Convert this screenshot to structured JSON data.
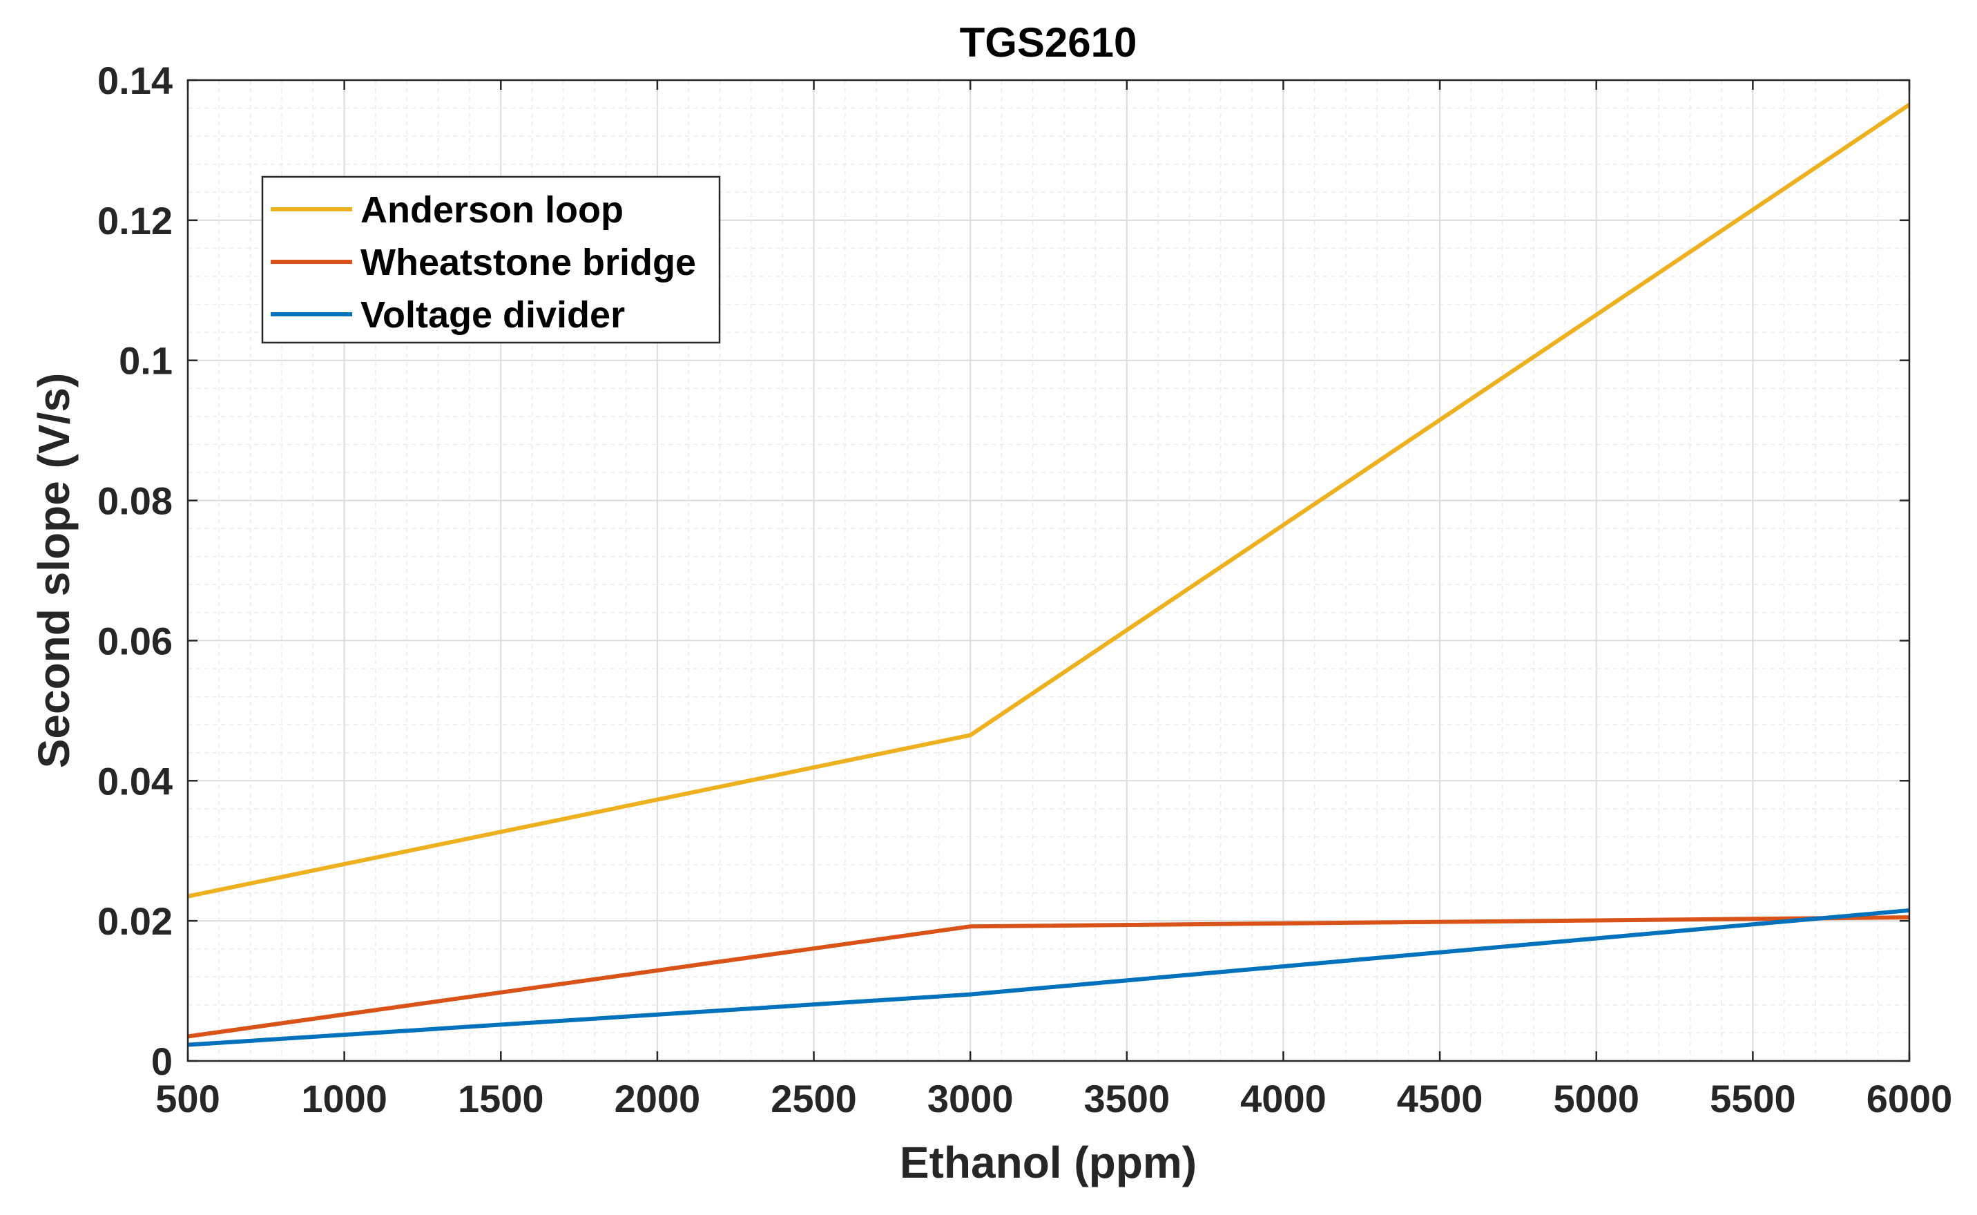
{
  "chart_data": {
    "type": "line",
    "title": "TGS2610",
    "xlabel": "Ethanol (ppm)",
    "ylabel": "Second slope (V/s)",
    "xlim": [
      500,
      6000
    ],
    "ylim": [
      0,
      0.14
    ],
    "xticks": [
      500,
      1000,
      1500,
      2000,
      2500,
      3000,
      3500,
      4000,
      4500,
      5000,
      5500,
      6000
    ],
    "xtick_labels": [
      "500",
      "1000",
      "1500",
      "2000",
      "2500",
      "3000",
      "3500",
      "4000",
      "4500",
      "5000",
      "5500",
      "6000"
    ],
    "yticks": [
      0,
      0.02,
      0.04,
      0.06,
      0.08,
      0.1,
      0.12,
      0.14
    ],
    "ytick_labels": [
      "0",
      "0.02",
      "0.04",
      "0.06",
      "0.08",
      "0.1",
      "0.12",
      "0.14"
    ],
    "grid": true,
    "minor_grid": true,
    "legend_position": "top-left",
    "series": [
      {
        "name": "Anderson loop",
        "color": "#EDB120",
        "x": [
          500,
          3000,
          6000
        ],
        "y": [
          0.0235,
          0.0465,
          0.1365
        ]
      },
      {
        "name": "Wheatstone bridge",
        "color": "#D95319",
        "x": [
          500,
          3000,
          6000
        ],
        "y": [
          0.0035,
          0.0192,
          0.0205
        ]
      },
      {
        "name": "Voltage divider",
        "color": "#0072BD",
        "x": [
          500,
          3000,
          6000
        ],
        "y": [
          0.0023,
          0.0095,
          0.0215
        ]
      }
    ]
  }
}
